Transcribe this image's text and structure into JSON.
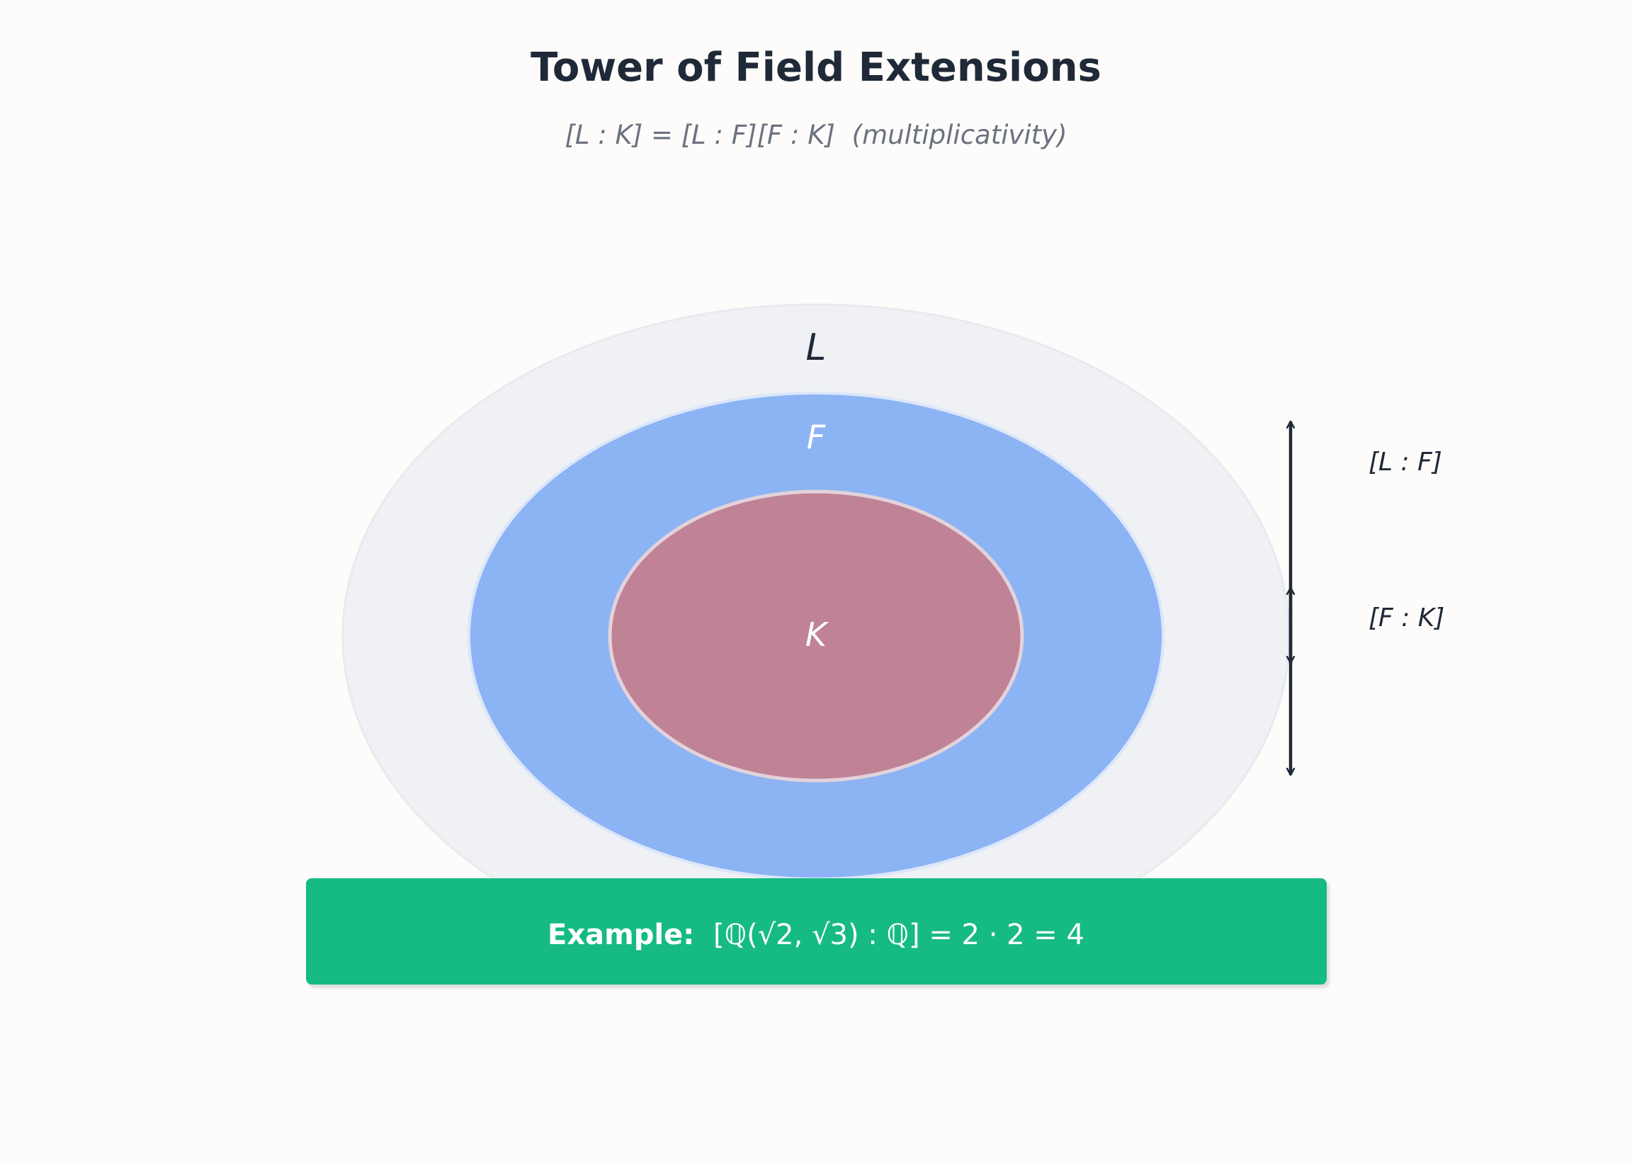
{
  "title": "Tower of Field Extensions",
  "subtitle": {
    "formula": "[L : K] = [L : F][F : K]",
    "note": "(multiplicativity)"
  },
  "fields": {
    "outer": {
      "label": "L",
      "color": "#eff1f4"
    },
    "middle": {
      "label": "F",
      "color": "#8cb3f3"
    },
    "inner": {
      "label": "K",
      "color": "#bf8395"
    }
  },
  "degrees": {
    "upper": "[L : F]",
    "lower": "[F : K]"
  },
  "example": {
    "prefix": "Example:",
    "formula_start": "[ℚ(√2, √3) : ℚ] = 2 · 2 = 4",
    "color": "#12ba84"
  },
  "colors": {
    "text_dark": "#1f2937",
    "text_muted": "#6b7280",
    "white": "#ffffff"
  }
}
